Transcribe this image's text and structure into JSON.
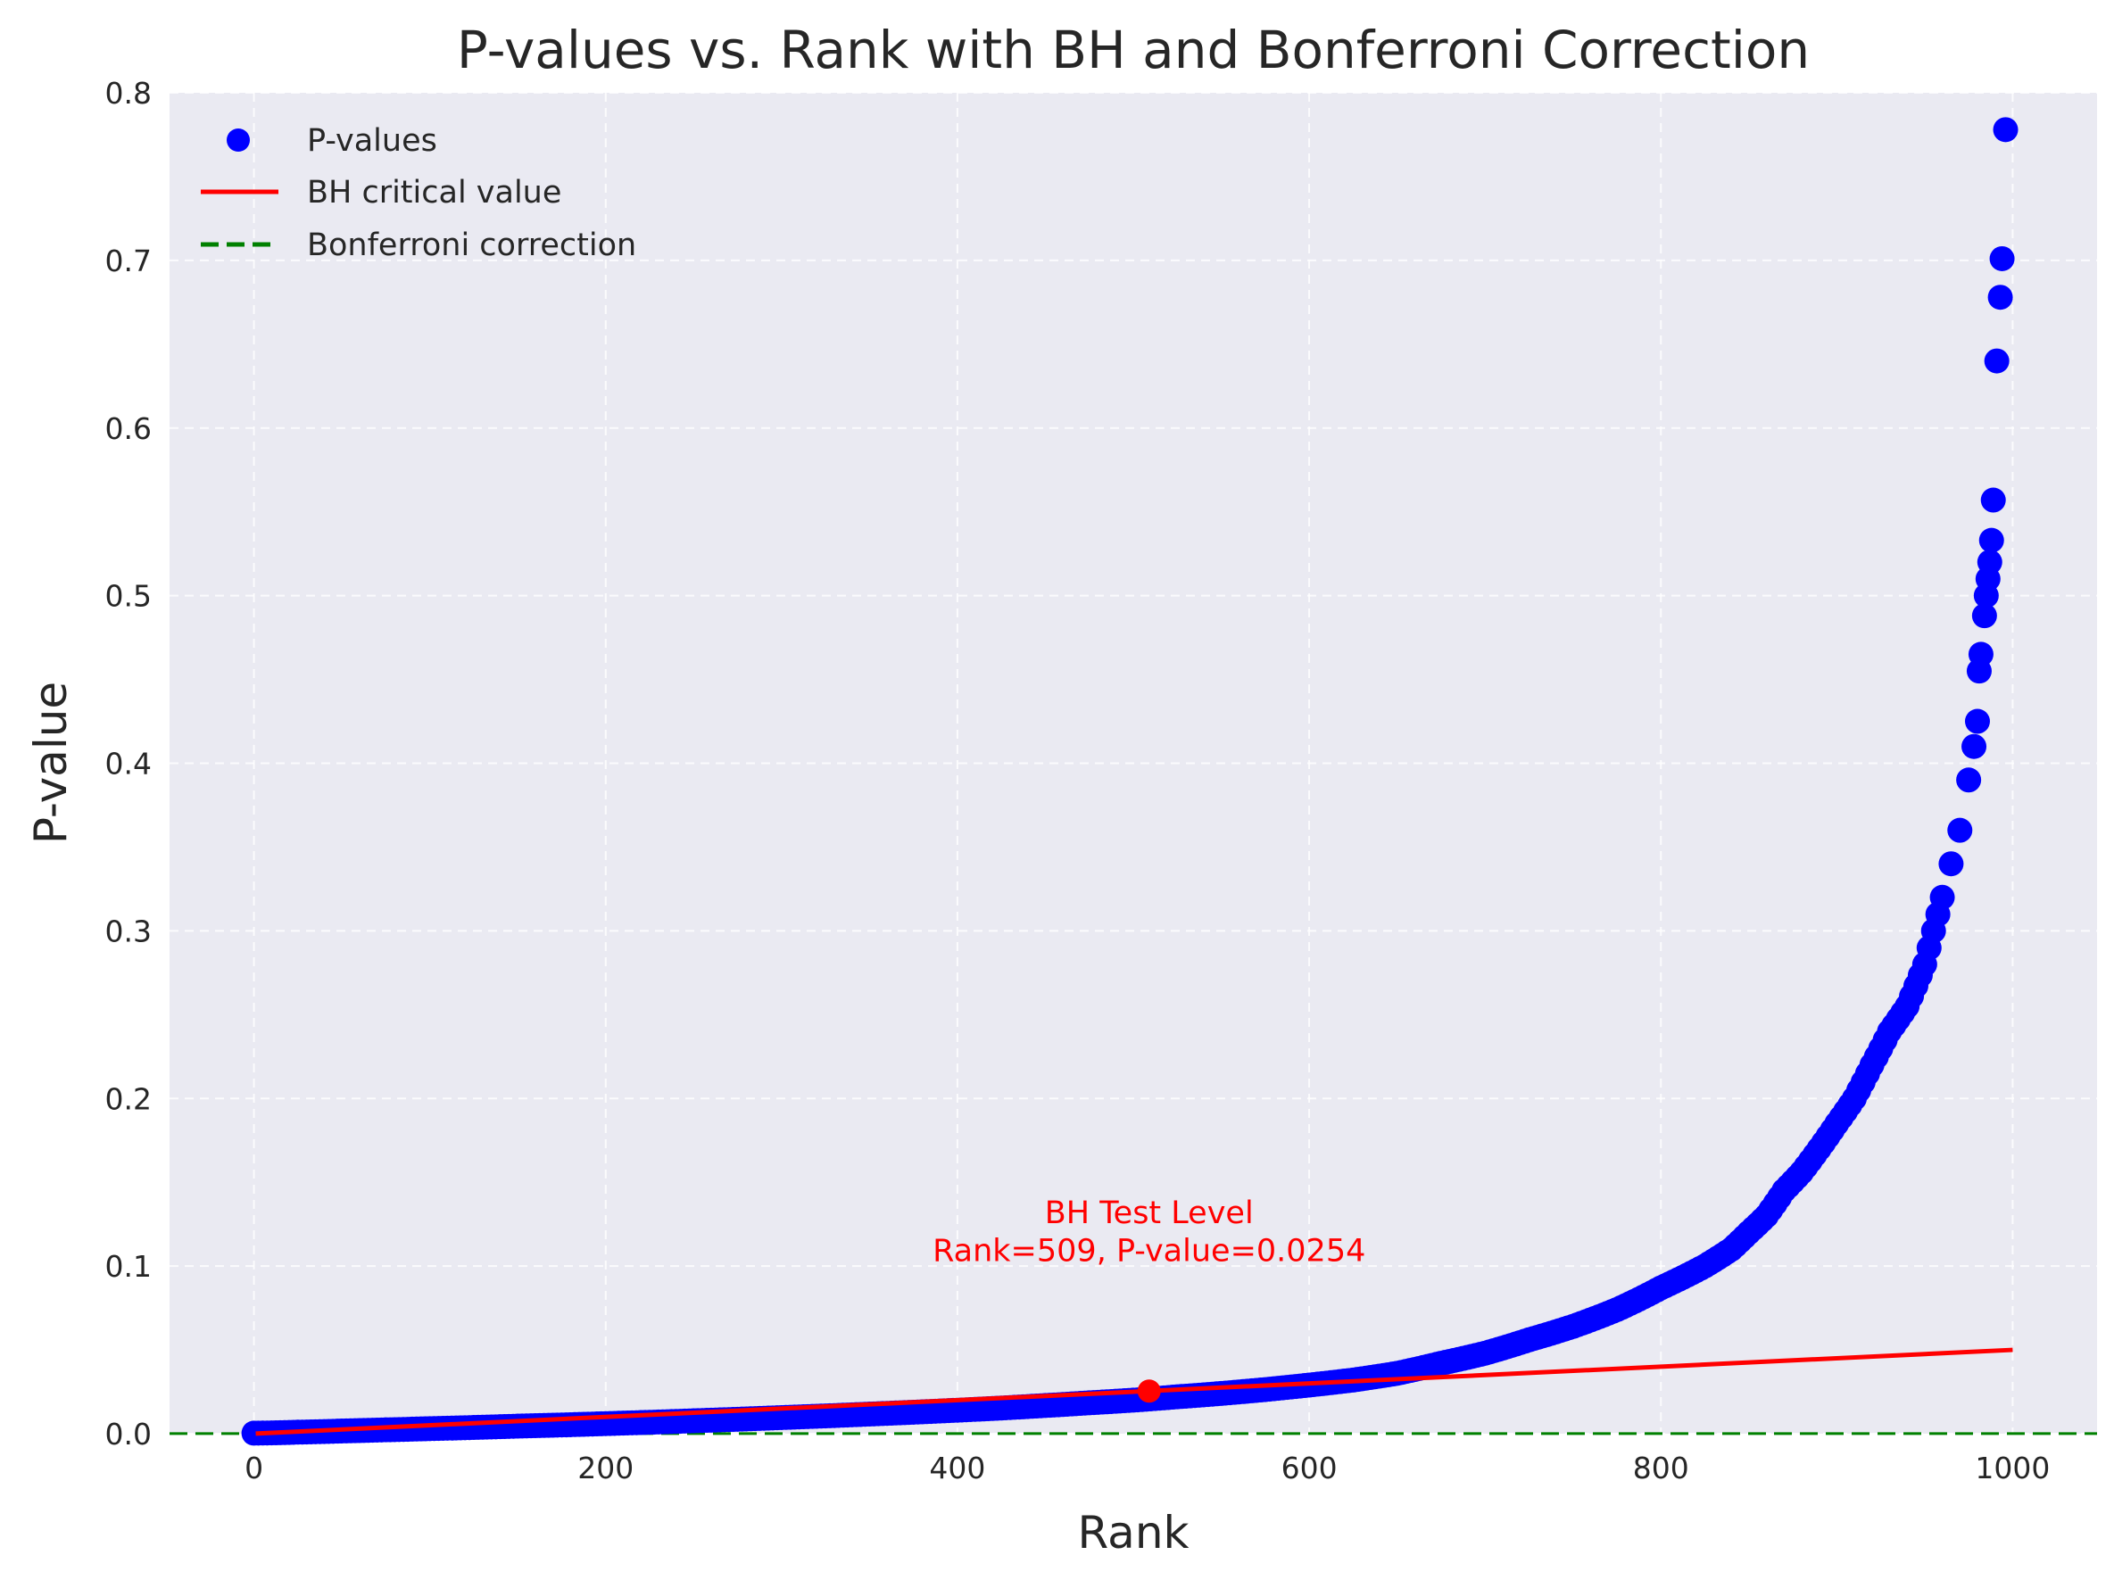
{
  "chart_data": {
    "type": "scatter",
    "title": "P-values vs. Rank with BH and Bonferroni Correction",
    "xlabel": "Rank",
    "ylabel": "P-value",
    "xlim": [
      -48,
      1048
    ],
    "ylim": [
      0,
      0.8
    ],
    "xticks": [
      0,
      200,
      400,
      600,
      800,
      1000
    ],
    "yticks": [
      0.0,
      0.1,
      0.2,
      0.3,
      0.4,
      0.5,
      0.6,
      0.7,
      0.8
    ],
    "grid": true,
    "legend_position": "top-left",
    "colors": {
      "background": "#eaeaf2",
      "pvalues": "#0000ff",
      "bh": "#ff0000",
      "bonferroni": "#008000",
      "grid": "#ffffff"
    },
    "legend": [
      {
        "label": "P-values",
        "kind": "marker",
        "color": "#0000ff"
      },
      {
        "label": "BH critical value",
        "kind": "line",
        "color": "#ff0000"
      },
      {
        "label": "Bonferroni correction",
        "kind": "dashed",
        "color": "#008000"
      }
    ],
    "series": [
      {
        "name": "P-values",
        "kind": "scatter",
        "points": [
          [
            0,
            0.0003
          ],
          [
            25,
            0.0009
          ],
          [
            50,
            0.0016
          ],
          [
            75,
            0.0023
          ],
          [
            100,
            0.003
          ],
          [
            125,
            0.0037
          ],
          [
            150,
            0.0045
          ],
          [
            175,
            0.0052
          ],
          [
            200,
            0.006
          ],
          [
            225,
            0.0068
          ],
          [
            250,
            0.0077
          ],
          [
            275,
            0.0086
          ],
          [
            300,
            0.0096
          ],
          [
            325,
            0.0106
          ],
          [
            350,
            0.0117
          ],
          [
            375,
            0.0128
          ],
          [
            400,
            0.014
          ],
          [
            425,
            0.0153
          ],
          [
            450,
            0.0168
          ],
          [
            475,
            0.0184
          ],
          [
            500,
            0.02
          ],
          [
            525,
            0.022
          ],
          [
            550,
            0.024
          ],
          [
            575,
            0.0263
          ],
          [
            600,
            0.029
          ],
          [
            625,
            0.032
          ],
          [
            650,
            0.036
          ],
          [
            675,
            0.042
          ],
          [
            700,
            0.048
          ],
          [
            725,
            0.056
          ],
          [
            750,
            0.064
          ],
          [
            775,
            0.074
          ],
          [
            800,
            0.087
          ],
          [
            825,
            0.1
          ],
          [
            840,
            0.11
          ],
          [
            850,
            0.12
          ],
          [
            860,
            0.13
          ],
          [
            870,
            0.145
          ],
          [
            880,
            0.156
          ],
          [
            890,
            0.17
          ],
          [
            900,
            0.185
          ],
          [
            910,
            0.2
          ],
          [
            920,
            0.22
          ],
          [
            930,
            0.24
          ],
          [
            940,
            0.255
          ],
          [
            950,
            0.28
          ],
          [
            955,
            0.3
          ],
          [
            960,
            0.32
          ],
          [
            965,
            0.34
          ],
          [
            970,
            0.36
          ],
          [
            975,
            0.39
          ],
          [
            978,
            0.41
          ],
          [
            980,
            0.425
          ],
          [
            981,
            0.455
          ],
          [
            982,
            0.465
          ],
          [
            984,
            0.488
          ],
          [
            985,
            0.5
          ],
          [
            986,
            0.51
          ],
          [
            987,
            0.52
          ],
          [
            988,
            0.533
          ],
          [
            989,
            0.557
          ],
          [
            991,
            0.64
          ],
          [
            993,
            0.678
          ],
          [
            994,
            0.701
          ],
          [
            996,
            0.778
          ]
        ]
      },
      {
        "name": "BH critical value",
        "kind": "line",
        "points": [
          [
            1,
            5e-05
          ],
          [
            1000,
            0.05
          ]
        ]
      },
      {
        "name": "Bonferroni correction",
        "kind": "hline",
        "y": 5e-05
      }
    ],
    "annotation": {
      "point": [
        509,
        0.0254
      ],
      "lines": [
        "BH Test Level",
        "Rank=509, P-value=0.0254"
      ]
    }
  }
}
